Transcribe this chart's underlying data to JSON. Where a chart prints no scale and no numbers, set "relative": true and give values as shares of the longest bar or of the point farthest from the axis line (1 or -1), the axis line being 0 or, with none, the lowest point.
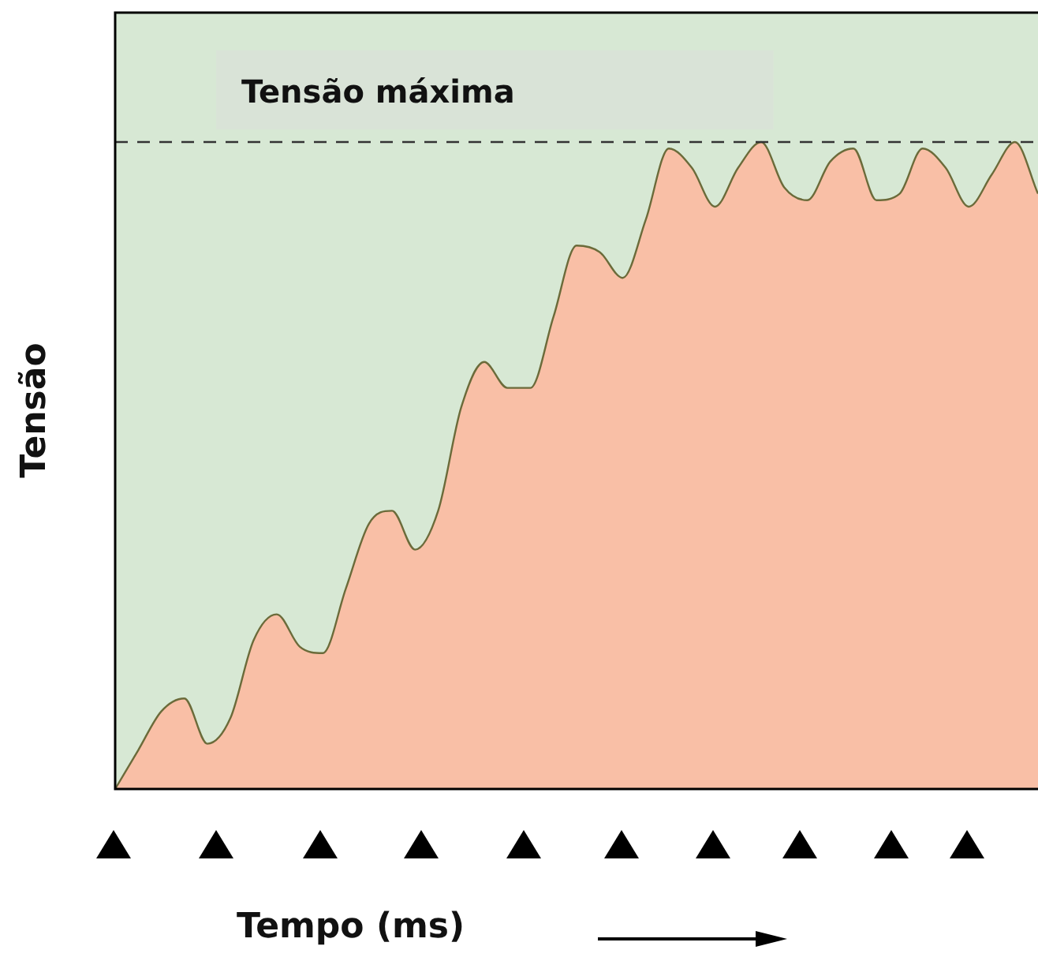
{
  "chart_data": {
    "type": "area",
    "relative": true,
    "xlabel": "Tempo (ms)",
    "ylabel": "Tensão",
    "categories": [
      null,
      null,
      null,
      null,
      null,
      null,
      null,
      null,
      null,
      null,
      null,
      null,
      null,
      null,
      null,
      null,
      null,
      null,
      null,
      null,
      null,
      null,
      null,
      null,
      null,
      null,
      null,
      null,
      null,
      null,
      null,
      null,
      null,
      null,
      null,
      null,
      null,
      null,
      null,
      null,
      null
    ],
    "series": [
      {
        "color": "#f9bfa6",
        "values": [
          0,
          0.06,
          0.12,
          0.14,
          0.07,
          0.11,
          0.23,
          0.27,
          0.22,
          0.21,
          0.31,
          0.41,
          0.43,
          0.37,
          0.43,
          0.59,
          0.66,
          0.62,
          0.62,
          0.73,
          0.84,
          0.83,
          0.79,
          0.88,
          0.99,
          0.96,
          0.9,
          0.96,
          1,
          0.93,
          0.91,
          0.97,
          0.99,
          0.91,
          0.92,
          0.99,
          0.96,
          0.9,
          0.95,
          1,
          0.92
        ]
      }
    ],
    "ref_lines": [
      {
        "axis": "y",
        "value": 1,
        "label": "Tensão máxima",
        "line_style": "dashed",
        "color": "#333333"
      }
    ]
  }
}
